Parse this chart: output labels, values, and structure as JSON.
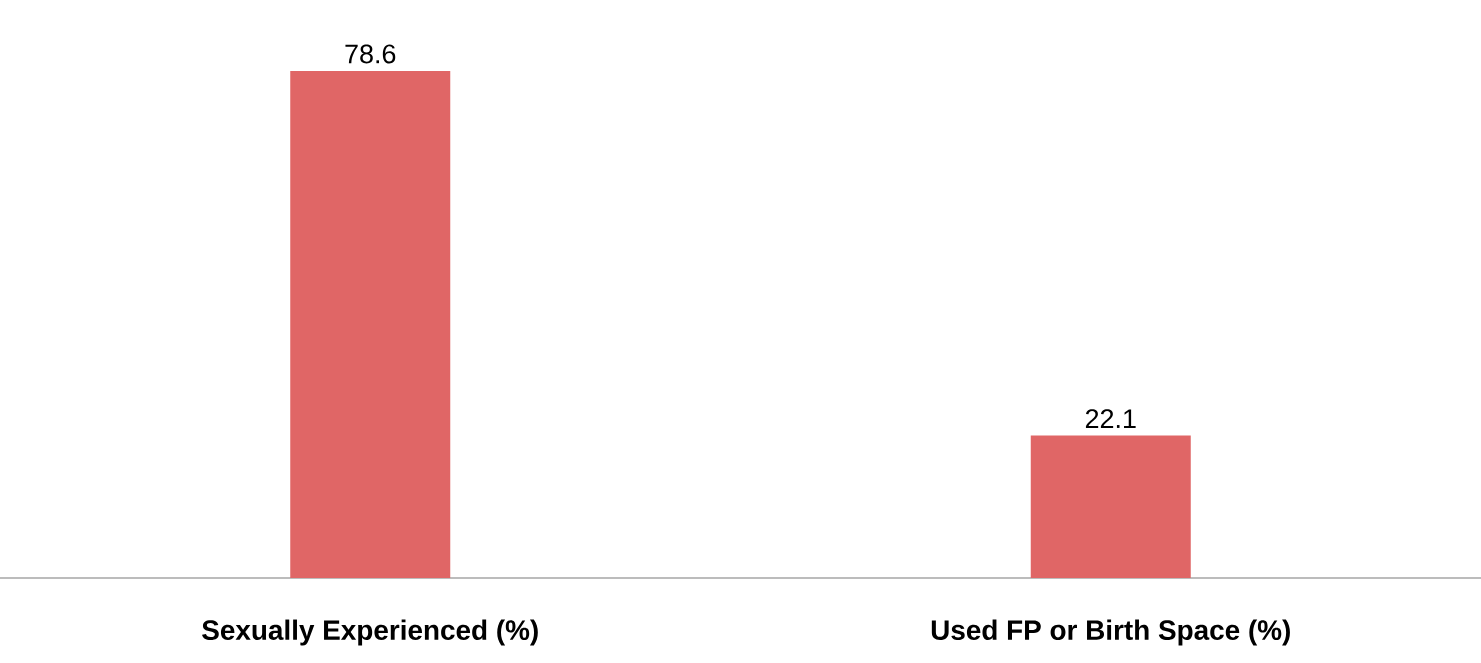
{
  "chart_data": {
    "type": "bar",
    "categories": [
      "Sexually Experienced (%)",
      "Used FP or Birth Space (%)"
    ],
    "values": [
      78.6,
      22.1
    ],
    "color": "#e06666",
    "data_labels": true
  }
}
